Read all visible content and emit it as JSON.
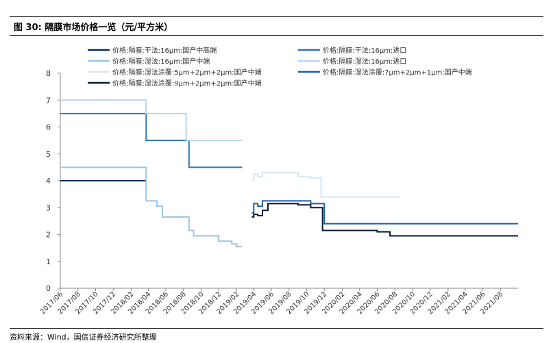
{
  "figure": {
    "title": "图 30:  隔膜市场价格一览（元/平方米）",
    "source": "资料来源：Wind，国信证券经济研究所整理"
  },
  "chart_data": {
    "type": "line",
    "ylim": [
      0,
      8
    ],
    "yticks": [
      0,
      1,
      2,
      3,
      4,
      5,
      6,
      7,
      8
    ],
    "xlim": [
      "2017-06",
      "2021-10"
    ],
    "xticks": [
      "2017/06",
      "2017/08",
      "2017/10",
      "2017/12",
      "2018/02",
      "2018/04",
      "2018/06",
      "2018/08",
      "2018/10",
      "2018/12",
      "2019/02",
      "2019/04",
      "2019/06",
      "2019/08",
      "2019/10",
      "2019/12",
      "2020/02",
      "2020/04",
      "2020/06",
      "2020/08",
      "2020/10",
      "2020/12",
      "2021/02",
      "2021/04",
      "2021/06",
      "2021/08"
    ],
    "grid": false,
    "legend_position": "top",
    "series": [
      {
        "name": "价格:隔膜:干法:16μm:国产中高端",
        "color": "#0d2b55",
        "width": 2,
        "points": [
          [
            "2017-06-01",
            4.0
          ],
          [
            "2018-03-25",
            4.0
          ]
        ]
      },
      {
        "name": "价格:隔膜:干法:16μm:进口",
        "color": "#2e75b6",
        "width": 2,
        "points": [
          [
            "2017-06-01",
            6.5
          ],
          [
            "2018-03-25",
            6.5
          ],
          [
            "2018-03-25",
            5.5
          ],
          [
            "2018-08-20",
            5.5
          ],
          [
            "2018-08-20",
            4.5
          ],
          [
            "2019-02-20",
            4.5
          ]
        ]
      },
      {
        "name": "价格:隔膜:湿法:16μm:国产中端",
        "color": "#9cc3e5",
        "width": 2,
        "points": [
          [
            "2017-06-01",
            4.5
          ],
          [
            "2018-03-25",
            4.5
          ],
          [
            "2018-03-25",
            3.25
          ],
          [
            "2018-05-01",
            3.25
          ],
          [
            "2018-05-01",
            3.05
          ],
          [
            "2018-05-20",
            3.05
          ],
          [
            "2018-05-20",
            2.65
          ],
          [
            "2018-08-20",
            2.65
          ],
          [
            "2018-08-20",
            2.15
          ],
          [
            "2018-09-05",
            2.15
          ],
          [
            "2018-09-05",
            1.95
          ],
          [
            "2018-12-01",
            1.95
          ],
          [
            "2018-12-01",
            1.75
          ],
          [
            "2019-01-15",
            1.75
          ],
          [
            "2019-01-15",
            1.65
          ],
          [
            "2019-02-01",
            1.65
          ],
          [
            "2019-02-01",
            1.55
          ],
          [
            "2019-02-20",
            1.55
          ]
        ]
      },
      {
        "name": "价格:隔膜:湿法:16μm:进口",
        "color": "#b9d4ec",
        "width": 2,
        "points": [
          [
            "2017-06-01",
            7.0
          ],
          [
            "2018-03-25",
            7.0
          ],
          [
            "2018-03-25",
            6.5
          ],
          [
            "2018-08-10",
            6.5
          ],
          [
            "2018-08-10",
            5.5
          ],
          [
            "2019-02-20",
            5.5
          ]
        ]
      },
      {
        "name": "价格:隔膜:湿法涂覆:5μm+2μm+2μm:国产中端",
        "color": "#d6e6f3",
        "width": 2,
        "points": [
          [
            "2019-03-25",
            4.0
          ],
          [
            "2019-04-01",
            4.0
          ],
          [
            "2019-04-01",
            4.25
          ],
          [
            "2019-04-15",
            4.25
          ],
          [
            "2019-04-15",
            4.15
          ],
          [
            "2019-05-01",
            4.15
          ],
          [
            "2019-05-01",
            4.3
          ],
          [
            "2019-09-01",
            4.3
          ],
          [
            "2019-09-01",
            4.15
          ],
          [
            "2019-10-15",
            4.15
          ],
          [
            "2019-10-15",
            4.1
          ],
          [
            "2019-11-20",
            4.1
          ],
          [
            "2019-11-20",
            3.4
          ],
          [
            "2020-08-20",
            3.4
          ]
        ]
      },
      {
        "name": "价格:隔膜:湿法涂覆:7μm+2μm+1μm:国产中端",
        "color": "#1f5fa8",
        "width": 2,
        "points": [
          [
            "2019-03-25",
            2.8
          ],
          [
            "2019-04-01",
            2.8
          ],
          [
            "2019-04-01",
            3.15
          ],
          [
            "2019-04-15",
            3.15
          ],
          [
            "2019-04-15",
            3.05
          ],
          [
            "2019-05-01",
            3.05
          ],
          [
            "2019-05-01",
            3.25
          ],
          [
            "2019-10-15",
            3.25
          ],
          [
            "2019-10-15",
            3.15
          ],
          [
            "2019-12-01",
            3.15
          ],
          [
            "2019-12-01",
            2.4
          ],
          [
            "2021-10-01",
            2.4
          ]
        ]
      },
      {
        "name": "价格:隔膜:湿法涂覆:9μm+2μm+2μm:国产中端",
        "color": "#061a33",
        "width": 2,
        "points": [
          [
            "2019-03-25",
            2.65
          ],
          [
            "2019-04-01",
            2.65
          ],
          [
            "2019-04-01",
            2.75
          ],
          [
            "2019-04-15",
            2.75
          ],
          [
            "2019-04-15",
            2.7
          ],
          [
            "2019-05-01",
            2.7
          ],
          [
            "2019-05-01",
            2.9
          ],
          [
            "2019-05-20",
            2.9
          ],
          [
            "2019-05-20",
            3.15
          ],
          [
            "2019-09-01",
            3.15
          ],
          [
            "2019-09-01",
            3.1
          ],
          [
            "2019-10-15",
            3.1
          ],
          [
            "2019-10-15",
            3.0
          ],
          [
            "2019-11-25",
            3.0
          ],
          [
            "2019-11-25",
            2.15
          ],
          [
            "2020-06-01",
            2.15
          ],
          [
            "2020-06-01",
            2.1
          ],
          [
            "2020-07-15",
            2.1
          ],
          [
            "2020-07-15",
            1.95
          ],
          [
            "2021-10-01",
            1.95
          ]
        ]
      }
    ]
  }
}
